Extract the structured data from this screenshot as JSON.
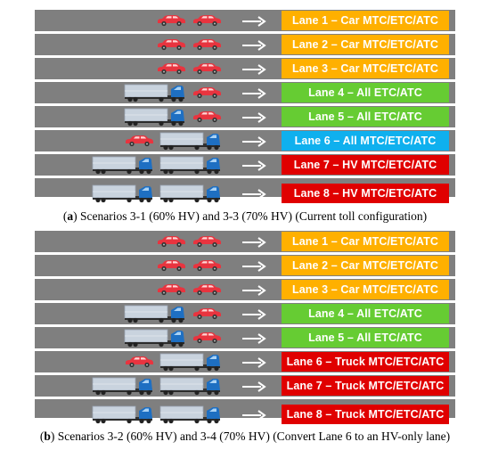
{
  "colors": {
    "road": "#7f7f7f",
    "lane_marking": "#ffffff",
    "car_lane": "#ffb000",
    "all_lane": "#66cc33",
    "mixed_lane": "#0fb0ee",
    "hv_lane": "#e00000"
  },
  "panel_a": {
    "lanes": [
      {
        "label": "Lane 1 – Car MTC/ETC/ATC",
        "type": "car",
        "vehicles": [
          "car",
          "car"
        ]
      },
      {
        "label": "Lane 2 – Car MTC/ETC/ATC",
        "type": "car",
        "vehicles": [
          "car",
          "car"
        ]
      },
      {
        "label": "Lane 3 – Car MTC/ETC/ATC",
        "type": "car",
        "vehicles": [
          "car",
          "car"
        ]
      },
      {
        "label": "Lane 4 – All ETC/ATC",
        "type": "all",
        "vehicles": [
          "truck",
          "car"
        ]
      },
      {
        "label": "Lane 5 – All ETC/ATC",
        "type": "all",
        "vehicles": [
          "truck",
          "car"
        ]
      },
      {
        "label": "Lane 6 – All MTC/ETC/ATC",
        "type": "mixed",
        "vehicles": [
          "car",
          "truck"
        ]
      },
      {
        "label": "Lane 7 – HV MTC/ETC/ATC",
        "type": "hv",
        "vehicles": [
          "truck",
          "truck"
        ]
      },
      {
        "label": "Lane 8 – HV MTC/ETC/ATC",
        "type": "hv",
        "vehicles": [
          "truck",
          "truck"
        ]
      }
    ],
    "caption_label": "a",
    "caption_text": "Scenarios 3-1 (60% HV) and 3-3 (70% HV) (Current toll configuration)"
  },
  "panel_b": {
    "lanes": [
      {
        "label": "Lane 1 – Car MTC/ETC/ATC",
        "type": "car",
        "vehicles": [
          "car",
          "car"
        ]
      },
      {
        "label": "Lane 2 – Car MTC/ETC/ATC",
        "type": "car",
        "vehicles": [
          "car",
          "car"
        ]
      },
      {
        "label": "Lane 3 – Car MTC/ETC/ATC",
        "type": "car",
        "vehicles": [
          "car",
          "car"
        ]
      },
      {
        "label": "Lane 4 – All ETC/ATC",
        "type": "all",
        "vehicles": [
          "truck",
          "car"
        ]
      },
      {
        "label": "Lane 5 – All ETC/ATC",
        "type": "all",
        "vehicles": [
          "truck",
          "car"
        ]
      },
      {
        "label": "Lane 6 – Truck MTC/ETC/ATC",
        "type": "hv",
        "vehicles": [
          "car",
          "truck"
        ]
      },
      {
        "label": "Lane 7 – Truck MTC/ETC/ATC",
        "type": "hv",
        "vehicles": [
          "truck",
          "truck"
        ]
      },
      {
        "label": "Lane 8 – Truck MTC/ETC/ATC",
        "type": "hv",
        "vehicles": [
          "truck",
          "truck"
        ]
      }
    ],
    "caption_label": "b",
    "caption_text": "Scenarios 3-2 (60% HV) and 3-4 (70% HV) (Convert Lane 6 to an HV-only lane)"
  }
}
